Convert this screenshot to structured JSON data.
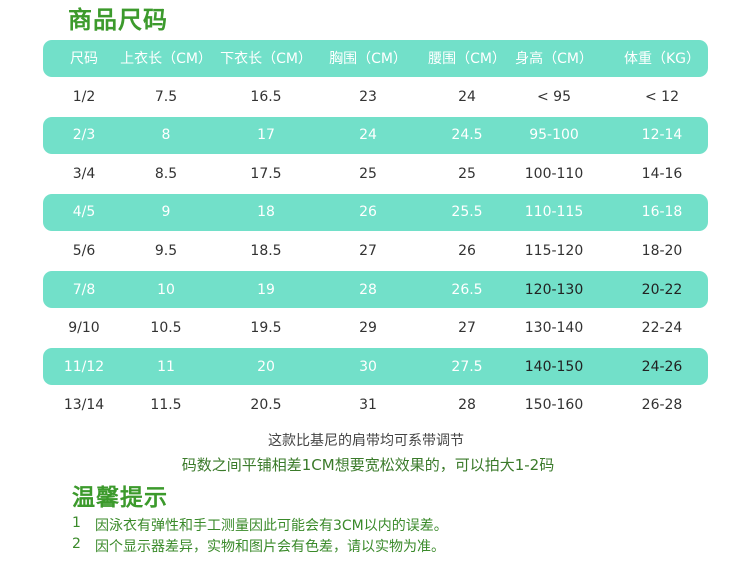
{
  "header": {
    "title": "商品尺码"
  },
  "table": {
    "columns": [
      "尺码",
      "上衣长（CM）",
      "下衣长（CM）",
      "胸围（CM）",
      "腰围（CM）",
      "身高（CM）",
      "体重（KG）"
    ],
    "rows": [
      [
        "1/2",
        "7.5",
        "16.5",
        "23",
        "24",
        "< 95",
        "< 12"
      ],
      [
        "2/3",
        "8",
        "17",
        "24",
        "24.5",
        "95-100",
        "12-14"
      ],
      [
        "3/4",
        "8.5",
        "17.5",
        "25",
        "25",
        "100-110",
        "14-16"
      ],
      [
        "4/5",
        "9",
        "18",
        "26",
        "25.5",
        "110-115",
        "16-18"
      ],
      [
        "5/6",
        "9.5",
        "18.5",
        "27",
        "26",
        "115-120",
        "18-20"
      ],
      [
        "7/8",
        "10",
        "19",
        "28",
        "26.5",
        "120-130",
        "20-22"
      ],
      [
        "9/10",
        "10.5",
        "19.5",
        "29",
        "27",
        "130-140",
        "22-24"
      ],
      [
        "11/12",
        "11",
        "20",
        "30",
        "27.5",
        "140-150",
        "24-26"
      ],
      [
        "13/14",
        "11.5",
        "20.5",
        "31",
        "28",
        "150-160",
        "26-28"
      ]
    ]
  },
  "notes": [
    "这款比基尼的肩带均可系带调节",
    "码数之间平铺相差1CM想要宽松效果的，可以拍大1-2码"
  ],
  "tips": {
    "title": "温馨提示",
    "items": [
      {
        "number": "1",
        "text": "因泳衣有弹性和手工测量因此可能会有3CM以内的误差。"
      },
      {
        "number": "2",
        "text": "因个显示器差异，实物和图片会有色差，请以实物为准。"
      }
    ]
  }
}
